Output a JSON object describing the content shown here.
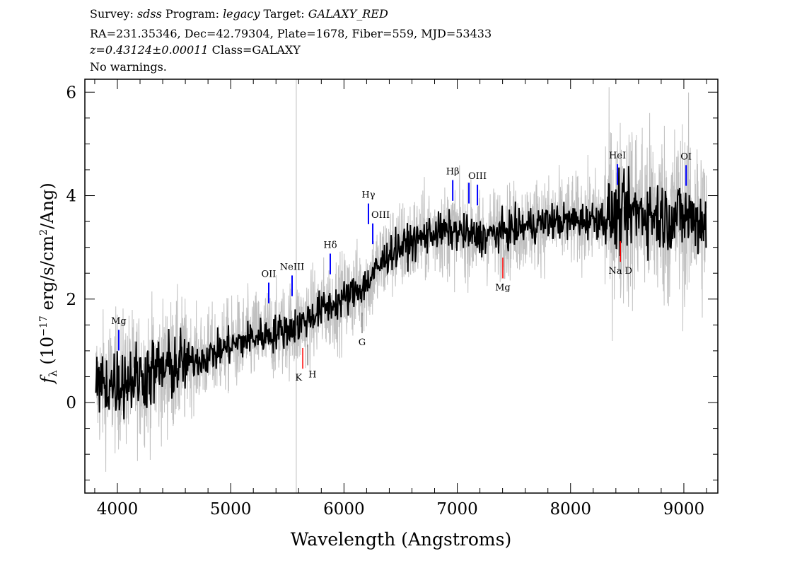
{
  "header": {
    "survey_label": "Survey:",
    "survey": "sdss",
    "program_label": "Program:",
    "program": "legacy",
    "target_label": "Target:",
    "target": "GALAXY_RED",
    "line2": "RA=231.35346, Dec=42.79304, Plate=1678, Fiber=559, MJD=53433",
    "redshift": "z=0.43124±0.00011",
    "class": "Class=GALAXY",
    "warnings": "No warnings."
  },
  "chart_data": {
    "type": "line",
    "xlabel": "Wavelength (Angstroms)",
    "ylabel": "f_λ (10^-17 erg/s/cm^2/Ang)",
    "xlim": [
      3713,
      9300
    ],
    "ylim": [
      -1.75,
      6.25
    ],
    "xticks": [
      4000,
      5000,
      6000,
      7000,
      8000,
      9000
    ],
    "yticks": [
      0,
      2,
      4,
      6
    ],
    "grid": false,
    "series": [
      {
        "role": "smoothed flux",
        "color": "#000000",
        "x": [
          3800,
          4000,
          4200,
          4500,
          4800,
          5000,
          5200,
          5400,
          5600,
          5800,
          6000,
          6200,
          6400,
          6600,
          6800,
          7000,
          7200,
          7400,
          7600,
          7800,
          8000,
          8200,
          8400,
          8600,
          8800,
          9000,
          9200
        ],
        "y": [
          0.3,
          0.4,
          0.5,
          0.7,
          0.9,
          1.1,
          1.25,
          1.35,
          1.5,
          1.8,
          2.0,
          2.3,
          2.9,
          3.1,
          3.3,
          3.3,
          3.2,
          3.3,
          3.4,
          3.5,
          3.5,
          3.55,
          3.6,
          3.7,
          3.6,
          3.6,
          3.5
        ]
      },
      {
        "role": "raw flux",
        "color": "#c0c0c0"
      }
    ],
    "sky_line": {
      "x": 5579,
      "color": "#c0c0c0"
    },
    "emission_lines": [
      {
        "label": "Mg",
        "x": 4012
      },
      {
        "label": "OII",
        "x": 5336
      },
      {
        "label": "NeIII",
        "x": 5542
      },
      {
        "label": "Hδ",
        "x": 5879
      },
      {
        "label": "Hγ",
        "x": 6216
      },
      {
        "label": "OIII",
        "x": 6254
      },
      {
        "label": "Hβ",
        "x": 6960
      },
      {
        "label": "",
        "x": 7103
      },
      {
        "label": "OIII",
        "x": 7178
      },
      {
        "label": "HeI",
        "x": 8414
      },
      {
        "label": "OI",
        "x": 9020
      }
    ],
    "absorption_lines": [
      {
        "label": "K",
        "x": 5636,
        "color": "#ff0000"
      },
      {
        "label": "H",
        "x": 5680,
        "color": "#808080"
      },
      {
        "label": "G",
        "x": 6160,
        "color": "#808080"
      },
      {
        "label": "Mg",
        "x": 7402,
        "color": "#ff0000"
      },
      {
        "label": "Na D",
        "x": 8440,
        "color": "#ff0000"
      }
    ],
    "emission_color": "#0000ff"
  }
}
